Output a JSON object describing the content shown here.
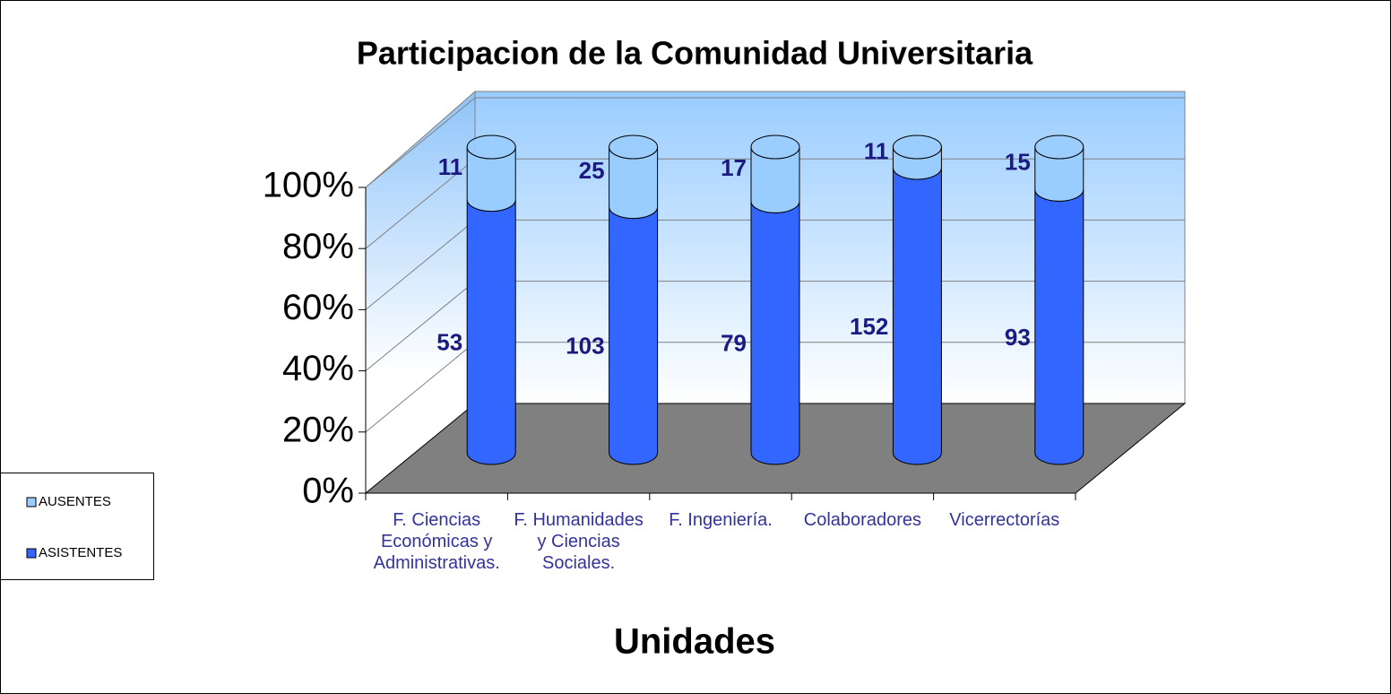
{
  "chart_data": {
    "type": "bar",
    "stacking": "percent",
    "title": "Participacion de la Comunidad Universitaria",
    "x_label": "Unidades",
    "categories": [
      "F. Ciencias Económicas y Administrativas.",
      "F. Humanidades y Ciencias Sociales.",
      "F. Ingeniería.",
      "Colaboradores",
      "Vicerrectorías"
    ],
    "series": [
      {
        "name": "ASISTENTES",
        "color": "#3366ff",
        "values": [
          53,
          103,
          79,
          152,
          93
        ]
      },
      {
        "name": "AUSENTES",
        "color": "#99ccff",
        "values": [
          11,
          25,
          17,
          11,
          15
        ]
      }
    ],
    "legend_order": [
      1,
      0
    ],
    "ylim": [
      0,
      100
    ],
    "yticks": [
      {
        "value": 0,
        "label": "0%"
      },
      {
        "value": 20,
        "label": "20%"
      },
      {
        "value": 40,
        "label": "40%"
      },
      {
        "value": 60,
        "label": "60%"
      },
      {
        "value": 80,
        "label": "80%"
      },
      {
        "value": 100,
        "label": "100%"
      }
    ],
    "grid": true,
    "legend": "left"
  }
}
